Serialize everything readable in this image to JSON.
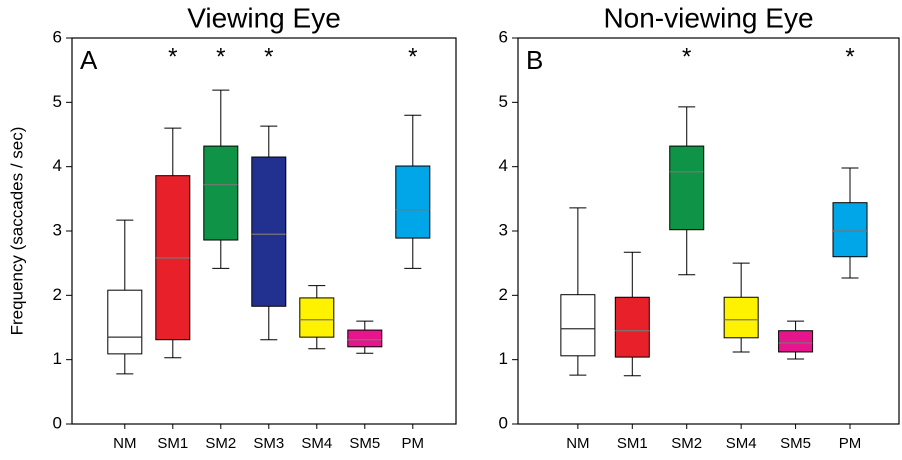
{
  "chart_data": [
    {
      "type": "box",
      "title": "Viewing Eye",
      "panel_label": "A",
      "y_label": "Frequency (saccades / sec)",
      "categories": [
        "NM",
        "SM1",
        "SM2",
        "SM3",
        "SM4",
        "SM5",
        "PM"
      ],
      "colors": [
        "#ffffff",
        "#e8202a",
        "#0f9447",
        "#22318f",
        "#fff200",
        "#e6158c",
        "#00a6e8"
      ],
      "min": [
        0.78,
        1.03,
        2.42,
        1.31,
        1.17,
        1.1,
        2.42
      ],
      "q1": [
        1.09,
        1.31,
        2.86,
        1.83,
        1.35,
        1.2,
        2.89
      ],
      "median": [
        1.35,
        2.58,
        3.72,
        2.95,
        1.62,
        1.31,
        3.33
      ],
      "q3": [
        2.08,
        3.86,
        4.32,
        4.15,
        1.96,
        1.46,
        4.01
      ],
      "max": [
        3.17,
        4.6,
        5.19,
        4.63,
        2.15,
        1.6,
        4.8
      ],
      "markers": [
        null,
        "*",
        "*",
        "*",
        null,
        null,
        "*"
      ],
      "ylim": [
        0,
        6
      ],
      "yticks": [
        0,
        1,
        2,
        3,
        4,
        5,
        6
      ]
    },
    {
      "type": "box",
      "title": "Non-viewing Eye",
      "panel_label": "B",
      "categories": [
        "NM",
        "SM1",
        "SM2",
        "SM4",
        "SM5",
        "PM"
      ],
      "colors": [
        "#ffffff",
        "#e8202a",
        "#0f9447",
        "#fff200",
        "#e6158c",
        "#00a6e8"
      ],
      "min": [
        0.76,
        0.75,
        2.32,
        1.12,
        1.01,
        2.27
      ],
      "q1": [
        1.06,
        1.04,
        3.02,
        1.34,
        1.12,
        2.6
      ],
      "median": [
        1.48,
        1.45,
        3.92,
        1.62,
        1.26,
        3.0
      ],
      "q3": [
        2.01,
        1.97,
        4.32,
        1.97,
        1.45,
        3.44
      ],
      "max": [
        3.36,
        2.67,
        4.93,
        2.5,
        1.6,
        3.98
      ],
      "markers": [
        null,
        null,
        "*",
        null,
        null,
        "*"
      ],
      "ylim": [
        0,
        6
      ],
      "yticks": [
        0,
        1,
        2,
        3,
        4,
        5,
        6
      ]
    }
  ]
}
